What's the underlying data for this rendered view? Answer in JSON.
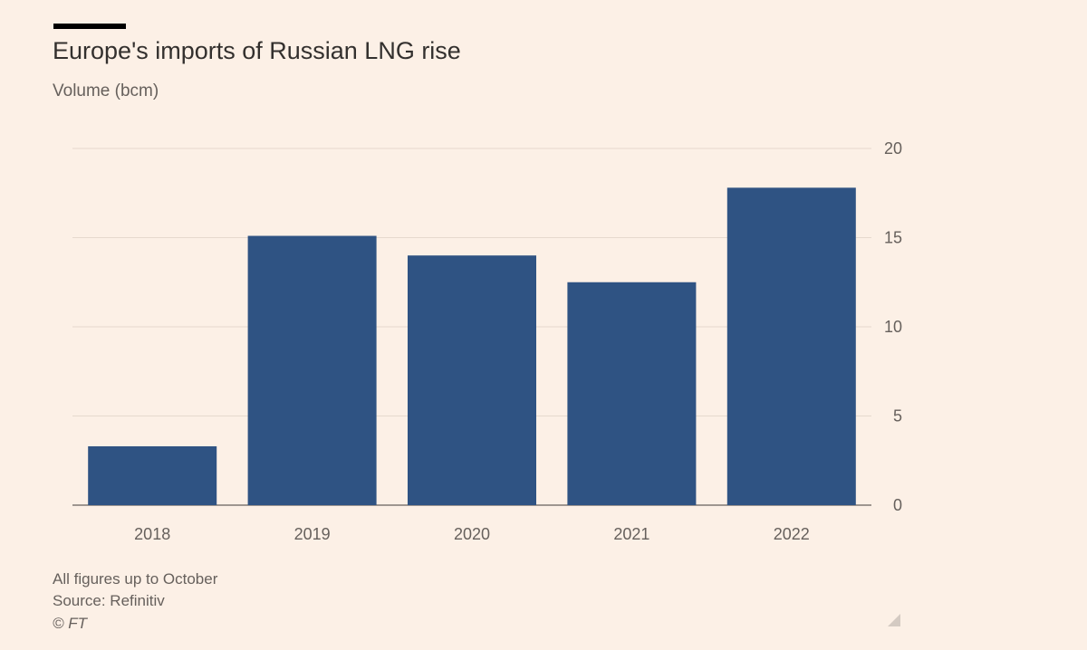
{
  "chart_data": {
    "type": "bar",
    "title": "Europe's imports of Russian LNG rise",
    "subtitle": "Volume (bcm)",
    "categories": [
      "2018",
      "2019",
      "2020",
      "2021",
      "2022"
    ],
    "values": [
      3.3,
      15.1,
      14.0,
      12.5,
      17.8
    ],
    "ylim": [
      0,
      20
    ],
    "yticks": [
      0,
      5,
      10,
      15,
      20
    ],
    "y_axis_side": "right",
    "grid": true,
    "bar_color": "#2f5383",
    "notes": [
      "All figures up to October",
      "Source: Refinitiv",
      "© FT"
    ]
  }
}
